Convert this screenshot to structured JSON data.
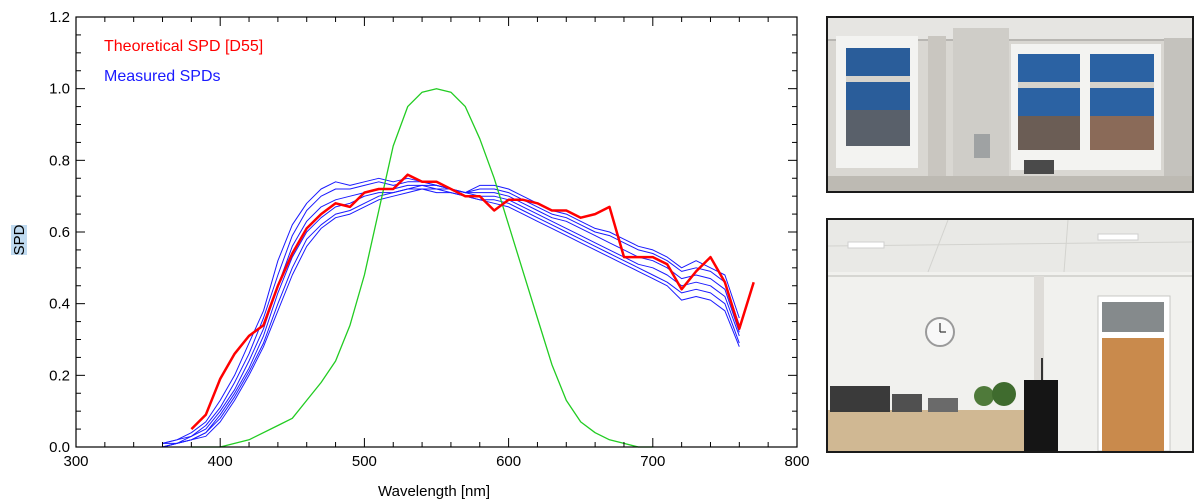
{
  "chart_data": {
    "type": "line",
    "xlabel": "Wavelength [nm]",
    "ylabel": "SPD",
    "xlim": [
      300,
      800
    ],
    "ylim": [
      0.0,
      1.2
    ],
    "xticks": [
      300,
      400,
      500,
      600,
      700,
      800
    ],
    "xtick_labels": [
      "300",
      "400",
      "500",
      "600",
      "700",
      "800"
    ],
    "yticks": [
      0.0,
      0.2,
      0.4,
      0.6,
      0.8,
      1.0,
      1.2
    ],
    "ytick_labels": [
      "0.0",
      "0.2",
      "0.4",
      "0.6",
      "0.8",
      "1.0",
      "1.2"
    ],
    "grid": false,
    "legend_position": "top-left",
    "legend": [
      {
        "label": "Theoretical SPD [D55]",
        "color": "#ff0000"
      },
      {
        "label": "Measured SPDs",
        "color": "#1a1aff"
      }
    ],
    "series": [
      {
        "name": "Theoretical SPD [D55]",
        "color": "#ff0000",
        "width": 2.5,
        "x": [
          380,
          390,
          400,
          410,
          420,
          430,
          440,
          450,
          460,
          470,
          480,
          490,
          500,
          510,
          520,
          530,
          540,
          550,
          560,
          570,
          580,
          590,
          600,
          610,
          620,
          630,
          640,
          650,
          660,
          670,
          680,
          690,
          700,
          710,
          720,
          730,
          740,
          750,
          760,
          770
        ],
        "y": [
          0.05,
          0.09,
          0.19,
          0.26,
          0.31,
          0.34,
          0.45,
          0.54,
          0.61,
          0.65,
          0.68,
          0.67,
          0.71,
          0.72,
          0.72,
          0.76,
          0.74,
          0.74,
          0.72,
          0.7,
          0.7,
          0.66,
          0.69,
          0.69,
          0.68,
          0.66,
          0.66,
          0.64,
          0.65,
          0.67,
          0.53,
          0.53,
          0.53,
          0.51,
          0.44,
          0.49,
          0.53,
          0.46,
          0.33,
          0.46
        ]
      },
      {
        "color": "#1a1aff",
        "width": 1,
        "x": [
          360,
          370,
          380,
          390,
          400,
          410,
          420,
          430,
          440,
          450,
          460,
          470,
          480,
          490,
          500,
          510,
          520,
          530,
          540,
          550,
          560,
          570,
          580,
          590,
          600,
          610,
          620,
          630,
          640,
          650,
          660,
          670,
          680,
          690,
          700,
          710,
          720,
          730,
          740,
          750,
          760
        ],
        "y": [
          0.01,
          0.02,
          0.04,
          0.07,
          0.13,
          0.2,
          0.29,
          0.38,
          0.52,
          0.62,
          0.68,
          0.72,
          0.74,
          0.73,
          0.74,
          0.75,
          0.74,
          0.75,
          0.74,
          0.73,
          0.72,
          0.71,
          0.73,
          0.73,
          0.72,
          0.7,
          0.68,
          0.66,
          0.65,
          0.63,
          0.61,
          0.6,
          0.58,
          0.56,
          0.55,
          0.53,
          0.5,
          0.52,
          0.5,
          0.48,
          0.36
        ]
      },
      {
        "color": "#1a1aff",
        "width": 1,
        "x": [
          360,
          370,
          380,
          390,
          400,
          410,
          420,
          430,
          440,
          450,
          460,
          470,
          480,
          490,
          500,
          510,
          520,
          530,
          540,
          550,
          560,
          570,
          580,
          590,
          600,
          610,
          620,
          630,
          640,
          650,
          660,
          670,
          680,
          690,
          700,
          710,
          720,
          730,
          740,
          750,
          760
        ],
        "y": [
          0.01,
          0.02,
          0.03,
          0.06,
          0.11,
          0.18,
          0.26,
          0.36,
          0.48,
          0.59,
          0.66,
          0.7,
          0.72,
          0.72,
          0.73,
          0.74,
          0.73,
          0.74,
          0.74,
          0.73,
          0.72,
          0.71,
          0.72,
          0.72,
          0.71,
          0.69,
          0.67,
          0.65,
          0.64,
          0.62,
          0.6,
          0.59,
          0.57,
          0.55,
          0.54,
          0.52,
          0.49,
          0.5,
          0.49,
          0.46,
          0.34
        ]
      },
      {
        "color": "#1a1aff",
        "width": 1,
        "x": [
          360,
          370,
          380,
          390,
          400,
          410,
          420,
          430,
          440,
          450,
          460,
          470,
          480,
          490,
          500,
          510,
          520,
          530,
          540,
          550,
          560,
          570,
          580,
          590,
          600,
          610,
          620,
          630,
          640,
          650,
          660,
          670,
          680,
          690,
          700,
          710,
          720,
          730,
          740,
          750,
          760
        ],
        "y": [
          0.01,
          0.01,
          0.03,
          0.05,
          0.1,
          0.16,
          0.24,
          0.33,
          0.45,
          0.56,
          0.63,
          0.67,
          0.69,
          0.7,
          0.71,
          0.72,
          0.72,
          0.73,
          0.73,
          0.73,
          0.72,
          0.71,
          0.71,
          0.71,
          0.7,
          0.68,
          0.66,
          0.64,
          0.63,
          0.61,
          0.59,
          0.57,
          0.55,
          0.53,
          0.52,
          0.5,
          0.47,
          0.48,
          0.47,
          0.44,
          0.32
        ]
      },
      {
        "color": "#1a1aff",
        "width": 1,
        "x": [
          360,
          370,
          380,
          390,
          400,
          410,
          420,
          430,
          440,
          450,
          460,
          470,
          480,
          490,
          500,
          510,
          520,
          530,
          540,
          550,
          560,
          570,
          580,
          590,
          600,
          610,
          620,
          630,
          640,
          650,
          660,
          670,
          680,
          690,
          700,
          710,
          720,
          730,
          740,
          750,
          760
        ],
        "y": [
          0.0,
          0.01,
          0.02,
          0.04,
          0.09,
          0.15,
          0.22,
          0.31,
          0.43,
          0.53,
          0.6,
          0.64,
          0.67,
          0.68,
          0.7,
          0.71,
          0.71,
          0.72,
          0.73,
          0.72,
          0.72,
          0.71,
          0.7,
          0.7,
          0.69,
          0.67,
          0.65,
          0.63,
          0.61,
          0.59,
          0.57,
          0.55,
          0.53,
          0.51,
          0.5,
          0.48,
          0.45,
          0.46,
          0.45,
          0.42,
          0.31
        ]
      },
      {
        "color": "#1a1aff",
        "width": 1,
        "x": [
          360,
          370,
          380,
          390,
          400,
          410,
          420,
          430,
          440,
          450,
          460,
          470,
          480,
          490,
          500,
          510,
          520,
          530,
          540,
          550,
          560,
          570,
          580,
          590,
          600,
          610,
          620,
          630,
          640,
          650,
          660,
          670,
          680,
          690,
          700,
          710,
          720,
          730,
          740,
          750,
          760
        ],
        "y": [
          0.0,
          0.01,
          0.02,
          0.04,
          0.08,
          0.14,
          0.21,
          0.29,
          0.4,
          0.5,
          0.58,
          0.62,
          0.65,
          0.66,
          0.68,
          0.7,
          0.71,
          0.72,
          0.72,
          0.72,
          0.71,
          0.7,
          0.69,
          0.69,
          0.68,
          0.66,
          0.64,
          0.62,
          0.6,
          0.58,
          0.56,
          0.54,
          0.52,
          0.5,
          0.48,
          0.46,
          0.43,
          0.44,
          0.43,
          0.4,
          0.29
        ]
      },
      {
        "color": "#1a1aff",
        "width": 1,
        "x": [
          360,
          370,
          380,
          390,
          400,
          410,
          420,
          430,
          440,
          450,
          460,
          470,
          480,
          490,
          500,
          510,
          520,
          530,
          540,
          550,
          560,
          570,
          580,
          590,
          600,
          610,
          620,
          630,
          640,
          650,
          660,
          670,
          680,
          690,
          700,
          710,
          720,
          730,
          740,
          750,
          760
        ],
        "y": [
          0.0,
          0.01,
          0.02,
          0.03,
          0.07,
          0.13,
          0.2,
          0.28,
          0.38,
          0.48,
          0.56,
          0.61,
          0.64,
          0.65,
          0.67,
          0.69,
          0.7,
          0.71,
          0.72,
          0.71,
          0.71,
          0.7,
          0.69,
          0.68,
          0.67,
          0.65,
          0.63,
          0.61,
          0.59,
          0.57,
          0.55,
          0.53,
          0.51,
          0.49,
          0.47,
          0.45,
          0.41,
          0.42,
          0.41,
          0.38,
          0.28
        ]
      },
      {
        "color": "#22cc22",
        "width": 1.3,
        "x": [
          380,
          400,
          420,
          440,
          450,
          460,
          470,
          480,
          490,
          500,
          510,
          520,
          530,
          540,
          550,
          560,
          570,
          580,
          590,
          600,
          610,
          620,
          630,
          640,
          650,
          660,
          670,
          680,
          690,
          700
        ],
        "y": [
          0.0,
          0.0,
          0.02,
          0.06,
          0.08,
          0.13,
          0.18,
          0.24,
          0.34,
          0.48,
          0.66,
          0.84,
          0.95,
          0.99,
          1.0,
          0.99,
          0.95,
          0.86,
          0.75,
          0.62,
          0.49,
          0.36,
          0.23,
          0.13,
          0.07,
          0.04,
          0.02,
          0.01,
          0.0,
          0.0
        ]
      }
    ]
  },
  "photos": [
    {
      "subject": "office room with windows and blinds"
    },
    {
      "subject": "office room with clock, door and cabinets"
    }
  ]
}
